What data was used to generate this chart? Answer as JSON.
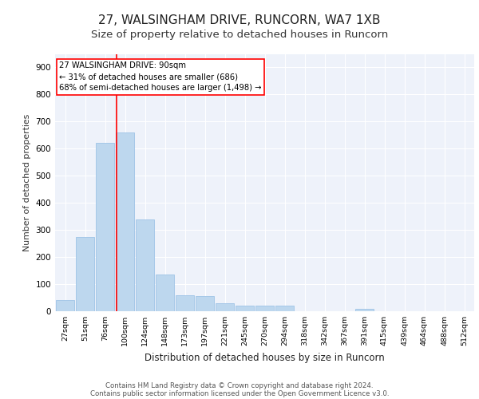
{
  "title1": "27, WALSINGHAM DRIVE, RUNCORN, WA7 1XB",
  "title2": "Size of property relative to detached houses in Runcorn",
  "xlabel": "Distribution of detached houses by size in Runcorn",
  "ylabel": "Number of detached properties",
  "bar_labels": [
    "27sqm",
    "51sqm",
    "76sqm",
    "100sqm",
    "124sqm",
    "148sqm",
    "173sqm",
    "197sqm",
    "221sqm",
    "245sqm",
    "270sqm",
    "294sqm",
    "318sqm",
    "342sqm",
    "367sqm",
    "391sqm",
    "415sqm",
    "439sqm",
    "464sqm",
    "488sqm",
    "512sqm"
  ],
  "bar_values": [
    42,
    275,
    622,
    660,
    340,
    135,
    60,
    55,
    30,
    20,
    20,
    20,
    0,
    0,
    0,
    10,
    0,
    0,
    0,
    0,
    0
  ],
  "bar_color": "#bdd7ee",
  "bar_edge_color": "#9dc3e6",
  "ylim": [
    0,
    950
  ],
  "yticks": [
    0,
    100,
    200,
    300,
    400,
    500,
    600,
    700,
    800,
    900
  ],
  "annotation_text": "27 WALSINGHAM DRIVE: 90sqm\n← 31% of detached houses are smaller (686)\n68% of semi-detached houses are larger (1,498) →",
  "footnote1": "Contains HM Land Registry data © Crown copyright and database right 2024.",
  "footnote2": "Contains public sector information licensed under the Open Government Licence v3.0.",
  "bg_color": "#ffffff",
  "plot_bg_color": "#eef2fa",
  "grid_color": "#ffffff",
  "title1_fontsize": 11,
  "title2_fontsize": 9.5,
  "red_line_x": 2.52
}
